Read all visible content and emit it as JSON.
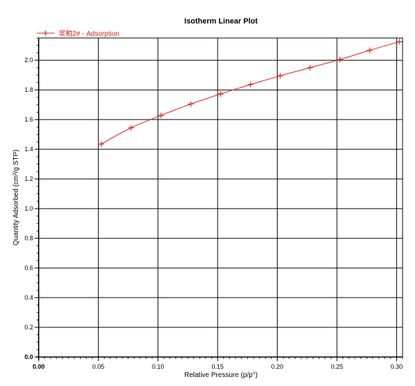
{
  "chart_data": {
    "type": "line",
    "title": "Isotherm Linear Plot",
    "xlabel": "Relative Pressure (p/p°)",
    "ylabel": "Quantity Adsorbed (cm³/g STP)",
    "xlim": [
      0.0,
      0.305
    ],
    "ylim": [
      0.0,
      2.15
    ],
    "x_ticks": [
      0.0,
      0.05,
      0.1,
      0.15,
      0.2,
      0.25,
      0.3
    ],
    "x_tick_labels": [
      "0.00",
      "0.05",
      "0.10",
      "0.15",
      "0.20",
      "0.25",
      "0.30"
    ],
    "y_ticks": [
      0.0,
      0.2,
      0.4,
      0.6,
      0.8,
      1.0,
      1.2,
      1.4,
      1.6,
      1.8,
      2.0
    ],
    "y_tick_labels": [
      "0.0",
      "0.2",
      "0.4",
      "0.6",
      "0.8",
      "1.0",
      "1.2",
      "1.4",
      "1.6",
      "1.8",
      "2.0"
    ],
    "grid": true,
    "legend_position": "top-left",
    "series": [
      {
        "name": "浆粕2# - Adsorption",
        "color": "#e0201a",
        "marker": "plus",
        "x": [
          0.0525,
          0.0775,
          0.1025,
          0.1275,
          0.1525,
          0.1775,
          0.2025,
          0.2275,
          0.2525,
          0.2775,
          0.3025
        ],
        "y": [
          1.435,
          1.545,
          1.628,
          1.705,
          1.773,
          1.836,
          1.895,
          1.95,
          2.005,
          2.067,
          2.125
        ]
      }
    ]
  }
}
